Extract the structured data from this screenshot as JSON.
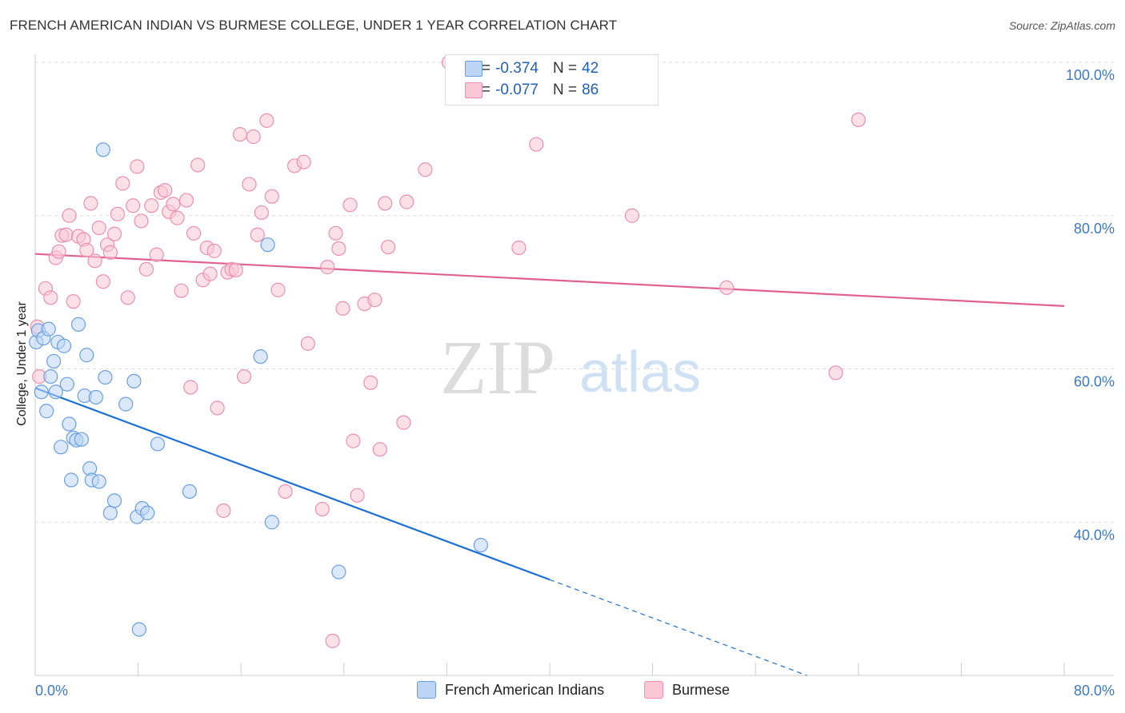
{
  "header": {
    "title": "FRENCH AMERICAN INDIAN VS BURMESE COLLEGE, UNDER 1 YEAR CORRELATION CHART",
    "source": "Source: ZipAtlas.com"
  },
  "watermark": {
    "zip": "ZIP",
    "atlas": "atlas"
  },
  "colors": {
    "blue": "#1a6fd6",
    "blue_fill": "#bcd5f5",
    "pink": "#e0618f",
    "pink_fill": "#f9c6d6",
    "tick_label": "#3c78c8",
    "grid": "#dddddd"
  },
  "legend_top": [
    {
      "series": "french",
      "r_label": "R =",
      "r_value": "-0.374",
      "n_label": "N =",
      "n_value": "42"
    },
    {
      "series": "burmese",
      "r_label": "R =",
      "r_value": "-0.077",
      "n_label": "N =",
      "n_value": "86"
    }
  ],
  "chart_data": {
    "type": "scatter",
    "title": "FRENCH AMERICAN INDIAN VS BURMESE COLLEGE, UNDER 1 YEAR CORRELATION CHART",
    "xlabel": "",
    "ylabel": "College, Under 1 year",
    "xlim": [
      0,
      100
    ],
    "ylim": [
      20,
      100
    ],
    "x_ticks_labeled": [
      "0.0%",
      "80.0%"
    ],
    "y_ticks": [
      {
        "value": 100,
        "label": "100.0%"
      },
      {
        "value": 80,
        "label": "80.0%"
      },
      {
        "value": 60,
        "label": "60.0%"
      },
      {
        "value": 40,
        "label": "40.0%"
      }
    ],
    "grid": true,
    "legend_position": "bottom",
    "series": [
      {
        "name": "French American Indians",
        "color": "#1a6fd6",
        "trend": {
          "x0": 0,
          "y0": 57.5,
          "x1": 50,
          "y1": 32.5,
          "dash_to_x": 75,
          "dash_to_y": 20.0
        },
        "points": [
          [
            0.1,
            63.5
          ],
          [
            0.3,
            65.0
          ],
          [
            0.6,
            57.0
          ],
          [
            0.8,
            64.0
          ],
          [
            1.1,
            54.5
          ],
          [
            1.3,
            65.2
          ],
          [
            1.5,
            59.0
          ],
          [
            1.8,
            61.0
          ],
          [
            2.0,
            57.0
          ],
          [
            2.2,
            63.5
          ],
          [
            2.5,
            49.8
          ],
          [
            2.8,
            63.0
          ],
          [
            3.1,
            58.0
          ],
          [
            3.3,
            52.8
          ],
          [
            3.5,
            45.5
          ],
          [
            3.7,
            51.0
          ],
          [
            4.0,
            50.7
          ],
          [
            4.2,
            65.8
          ],
          [
            4.5,
            50.8
          ],
          [
            4.8,
            56.5
          ],
          [
            5.0,
            61.8
          ],
          [
            5.3,
            47.0
          ],
          [
            5.5,
            45.5
          ],
          [
            5.9,
            56.3
          ],
          [
            6.2,
            45.3
          ],
          [
            6.6,
            88.6
          ],
          [
            6.8,
            58.9
          ],
          [
            7.3,
            41.2
          ],
          [
            7.7,
            42.8
          ],
          [
            8.8,
            55.4
          ],
          [
            9.6,
            58.4
          ],
          [
            9.9,
            40.7
          ],
          [
            10.1,
            26.0
          ],
          [
            10.4,
            41.8
          ],
          [
            10.9,
            41.2
          ],
          [
            11.9,
            50.2
          ],
          [
            15.0,
            44.0
          ],
          [
            21.9,
            61.6
          ],
          [
            22.6,
            76.2
          ],
          [
            23.0,
            40.0
          ],
          [
            29.5,
            33.5
          ],
          [
            43.3,
            37.0
          ]
        ]
      },
      {
        "name": "Burmese",
        "color": "#e0618f",
        "trend": {
          "x0": 0,
          "y0": 75.0,
          "x1": 100,
          "y1": 68.2
        },
        "points": [
          [
            0.2,
            65.5
          ],
          [
            0.4,
            59.0
          ],
          [
            1.0,
            70.5
          ],
          [
            1.5,
            69.3
          ],
          [
            2.0,
            74.5
          ],
          [
            2.3,
            75.3
          ],
          [
            2.6,
            77.4
          ],
          [
            3.0,
            77.5
          ],
          [
            3.3,
            80.0
          ],
          [
            3.7,
            68.8
          ],
          [
            4.2,
            77.3
          ],
          [
            4.7,
            76.9
          ],
          [
            5.0,
            75.5
          ],
          [
            5.4,
            81.6
          ],
          [
            5.8,
            74.1
          ],
          [
            6.2,
            78.4
          ],
          [
            6.6,
            71.4
          ],
          [
            7.0,
            76.2
          ],
          [
            7.3,
            75.2
          ],
          [
            7.7,
            77.6
          ],
          [
            8.0,
            80.2
          ],
          [
            8.5,
            84.2
          ],
          [
            9.0,
            69.3
          ],
          [
            9.5,
            81.3
          ],
          [
            9.9,
            86.4
          ],
          [
            10.3,
            79.3
          ],
          [
            10.8,
            73.0
          ],
          [
            11.3,
            81.3
          ],
          [
            11.8,
            74.9
          ],
          [
            12.2,
            83.0
          ],
          [
            12.6,
            83.3
          ],
          [
            13.0,
            80.5
          ],
          [
            13.4,
            81.5
          ],
          [
            13.8,
            79.7
          ],
          [
            14.2,
            70.2
          ],
          [
            14.7,
            82.0
          ],
          [
            15.1,
            57.6
          ],
          [
            15.4,
            77.7
          ],
          [
            15.8,
            86.6
          ],
          [
            16.3,
            71.6
          ],
          [
            16.7,
            75.8
          ],
          [
            17.0,
            72.4
          ],
          [
            17.4,
            75.4
          ],
          [
            17.7,
            54.9
          ],
          [
            18.3,
            41.5
          ],
          [
            18.7,
            72.6
          ],
          [
            19.1,
            73.0
          ],
          [
            19.5,
            72.9
          ],
          [
            19.9,
            90.6
          ],
          [
            20.3,
            59.0
          ],
          [
            20.8,
            84.1
          ],
          [
            21.2,
            90.3
          ],
          [
            21.6,
            77.5
          ],
          [
            22.0,
            80.4
          ],
          [
            22.5,
            92.4
          ],
          [
            23.0,
            82.5
          ],
          [
            23.6,
            70.3
          ],
          [
            24.3,
            44.0
          ],
          [
            25.2,
            86.5
          ],
          [
            26.1,
            87.0
          ],
          [
            26.5,
            63.3
          ],
          [
            27.9,
            41.7
          ],
          [
            28.4,
            73.3
          ],
          [
            28.9,
            24.5
          ],
          [
            29.2,
            77.7
          ],
          [
            29.5,
            75.7
          ],
          [
            29.9,
            67.9
          ],
          [
            30.6,
            81.4
          ],
          [
            30.9,
            50.6
          ],
          [
            31.3,
            43.5
          ],
          [
            32.0,
            68.5
          ],
          [
            32.6,
            58.2
          ],
          [
            33.0,
            69.0
          ],
          [
            33.5,
            49.5
          ],
          [
            34.0,
            81.6
          ],
          [
            34.3,
            75.9
          ],
          [
            35.8,
            53.0
          ],
          [
            36.1,
            81.8
          ],
          [
            37.9,
            86.0
          ],
          [
            40.2,
            100.0
          ],
          [
            47.0,
            75.8
          ],
          [
            48.7,
            89.3
          ],
          [
            58.0,
            80.0
          ],
          [
            67.2,
            70.6
          ],
          [
            77.8,
            59.5
          ],
          [
            80.0,
            92.5
          ]
        ]
      }
    ]
  }
}
